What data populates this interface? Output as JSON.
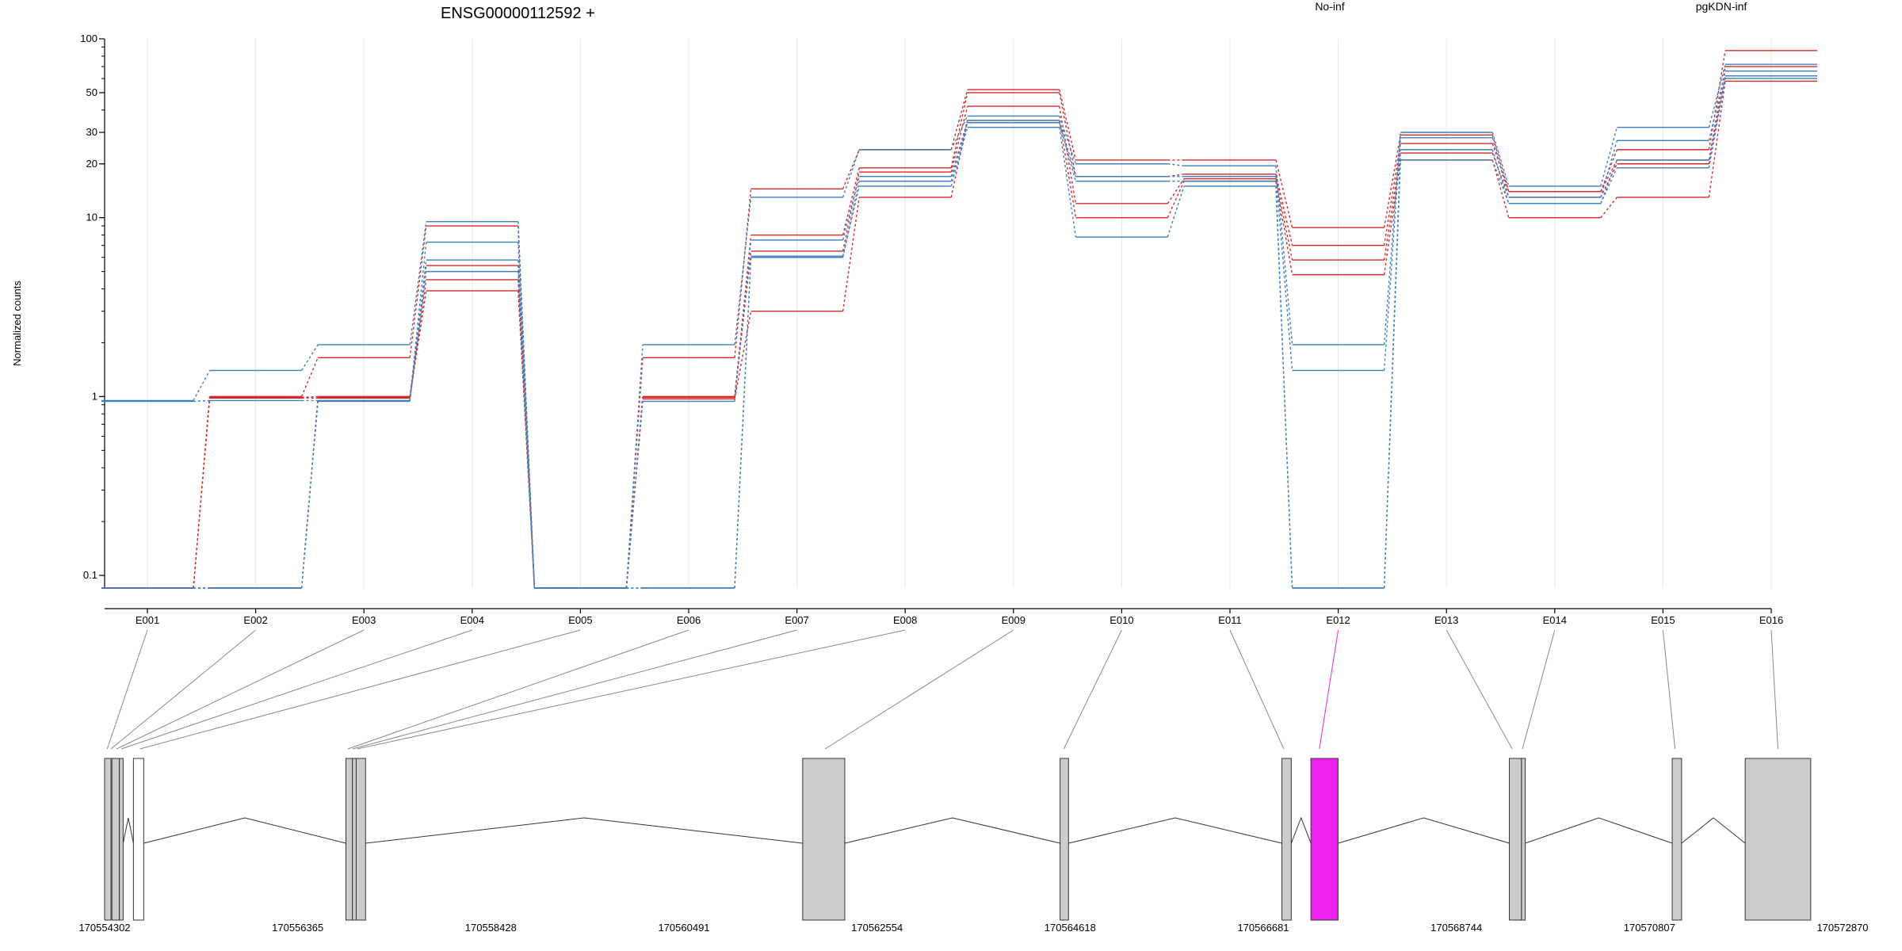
{
  "chart_data": {
    "type": "line",
    "title": "ENSG00000112592 +",
    "ylabel": "Normalized counts",
    "xlabel": "",
    "y_scale": "log",
    "ylim": [
      0.085,
      100
    ],
    "y_ticks": [
      0.1,
      1,
      10,
      20,
      30,
      50,
      100
    ],
    "y_tick_labels": [
      "0.1",
      "1",
      "10",
      "20",
      "30",
      "50",
      "100"
    ],
    "grid": "vertical",
    "legend": [
      {
        "name": "No-inf",
        "color": "#d62728"
      },
      {
        "name": "pgKDN-inf",
        "color": "#3d7fbd"
      }
    ],
    "categories": [
      "E001",
      "E002",
      "E003",
      "E004",
      "E005",
      "E006",
      "E007",
      "E008",
      "E009",
      "E010",
      "E011",
      "E012",
      "E013",
      "E014",
      "E015",
      "E016"
    ],
    "highlight_exon": "E012",
    "series": [
      {
        "group": "No-inf",
        "values": [
          0.085,
          1.0,
          1.65,
          9.0,
          0.085,
          1.65,
          14.5,
          24.0,
          52.0,
          21.0,
          21.0,
          8.8,
          29.0,
          14.0,
          24.0,
          86.0
        ]
      },
      {
        "group": "No-inf",
        "values": [
          0.085,
          0.99,
          1.0,
          5.4,
          0.085,
          1.0,
          8.0,
          19.0,
          50.0,
          17.0,
          17.5,
          7.0,
          26.0,
          14.0,
          21.0,
          70.0
        ]
      },
      {
        "group": "No-inf",
        "values": [
          0.085,
          0.98,
          0.98,
          4.5,
          0.085,
          0.99,
          6.5,
          18.0,
          42.0,
          12.0,
          16.5,
          5.8,
          23.0,
          13.0,
          20.0,
          62.0
        ]
      },
      {
        "group": "No-inf",
        "values": [
          0.085,
          0.085,
          0.99,
          3.9,
          0.085,
          0.97,
          3.0,
          13.0,
          35.0,
          10.0,
          16.0,
          4.8,
          21.0,
          10.0,
          13.0,
          58.0
        ]
      },
      {
        "group": "pgKDN-inf",
        "values": [
          0.95,
          1.4,
          1.95,
          9.5,
          0.085,
          1.95,
          13.0,
          24.0,
          37.0,
          20.0,
          19.5,
          1.95,
          30.0,
          15.0,
          32.0,
          72.0
        ]
      },
      {
        "group": "pgKDN-inf",
        "values": [
          0.94,
          0.95,
          0.95,
          7.3,
          0.085,
          0.94,
          7.5,
          17.0,
          35.0,
          17.0,
          17.0,
          1.4,
          28.0,
          13.0,
          27.0,
          66.0
        ]
      },
      {
        "group": "pgKDN-inf",
        "values": [
          0.085,
          0.085,
          0.94,
          5.8,
          0.085,
          0.085,
          6.0,
          16.0,
          34.0,
          16.0,
          16.0,
          0.085,
          24.0,
          12.0,
          21.0,
          62.0
        ]
      },
      {
        "group": "pgKDN-inf",
        "values": [
          0.085,
          0.085,
          0.95,
          5.0,
          0.085,
          0.085,
          6.1,
          15.0,
          32.0,
          7.8,
          15.0,
          0.085,
          21.0,
          12.0,
          19.0,
          60.0
        ]
      }
    ],
    "gene_model": {
      "coordinate_labels": [
        "170554302",
        "170556365",
        "170558428",
        "170560491",
        "170562554",
        "170564618",
        "170566681",
        "170568744",
        "170570807",
        "170572870"
      ],
      "coord_range": [
        170554302,
        170572870
      ],
      "exons": [
        {
          "id": "E001",
          "start": 170554302,
          "end": 170554370,
          "filled": true
        },
        {
          "id": "E002",
          "start": 170554380,
          "end": 170554460,
          "filled": true
        },
        {
          "id": "E003",
          "start": 170554460,
          "end": 170554500,
          "filled": true
        },
        {
          "id": "E004",
          "start": 170554610,
          "end": 170554720,
          "filled": false
        },
        {
          "id": "E005",
          "start": 170556880,
          "end": 170556950,
          "filled": true
        },
        {
          "id": "E006",
          "start": 170556950,
          "end": 170556990,
          "filled": true
        },
        {
          "id": "E007",
          "start": 170556990,
          "end": 170557090,
          "filled": true
        },
        {
          "id": "E009",
          "start": 170561760,
          "end": 170562210,
          "filled": true
        },
        {
          "id": "E010",
          "start": 170564510,
          "end": 170564600,
          "filled": true
        },
        {
          "id": "E011",
          "start": 170566880,
          "end": 170566980,
          "filled": true
        },
        {
          "id": "E012",
          "start": 170567190,
          "end": 170567480,
          "filled": true
        },
        {
          "id": "E013",
          "start": 170569310,
          "end": 170569440,
          "filled": true
        },
        {
          "id": "E014",
          "start": 170569440,
          "end": 170569480,
          "filled": true
        },
        {
          "id": "E015",
          "start": 170571050,
          "end": 170571150,
          "filled": true
        },
        {
          "id": "E016",
          "start": 170571830,
          "end": 170572530,
          "filled": true
        }
      ],
      "exon_link_coords": [
        170554330,
        170554370,
        170554430,
        170554480,
        170554680,
        170556900,
        170556950,
        170557000,
        170562000,
        170564550,
        170566900,
        170567280,
        170569340,
        170569450,
        170571080,
        170572180
      ]
    }
  },
  "colors": {
    "no_inf": "#d62728",
    "pgkdn_inf": "#3d7fbd",
    "highlight": "#ee22ee",
    "exon_fill": "#cccccc",
    "grid": "#e6e6e6"
  }
}
